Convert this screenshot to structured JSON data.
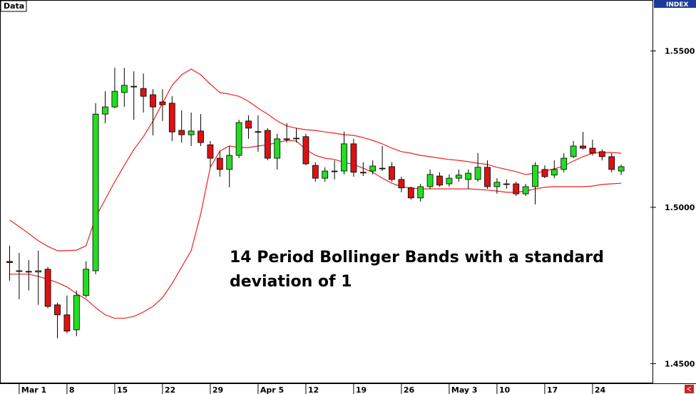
{
  "chart_data": {
    "type": "candlestick",
    "label": "Data",
    "index_label": "INDEX",
    "annotation": "14 Period Bollinger Bands with a standard deviation of 1",
    "categories": [
      null,
      "Mar 1",
      null,
      null,
      null,
      null,
      "8",
      null,
      null,
      null,
      null,
      "15",
      null,
      null,
      null,
      null,
      "22",
      null,
      null,
      null,
      null,
      "29",
      null,
      null,
      null,
      null,
      "Apr 5",
      null,
      null,
      null,
      null,
      "12",
      null,
      null,
      null,
      null,
      "19",
      null,
      null,
      null,
      null,
      "26",
      null,
      null,
      null,
      null,
      "May 3",
      null,
      null,
      null,
      null,
      "10",
      null,
      null,
      null,
      null,
      "17",
      null,
      null,
      null,
      null,
      "24",
      null,
      null,
      null
    ],
    "open": [
      1.4827,
      1.4797,
      1.4795,
      1.4793,
      1.4802,
      1.4688,
      1.4656,
      1.4608,
      1.4718,
      1.4797,
      1.5298,
      1.5321,
      1.5367,
      1.5387,
      1.538,
      1.536,
      1.5337,
      1.5333,
      1.5246,
      1.5232,
      1.5244,
      1.52,
      1.5157,
      1.5121,
      1.5166,
      1.5276,
      1.5242,
      1.5246,
      1.5157,
      1.5219,
      1.5219,
      1.5226,
      1.5134,
      1.5093,
      1.5116,
      1.5116,
      1.5203,
      1.5112,
      1.5116,
      1.5125,
      1.513,
      1.5089,
      1.5062,
      1.503,
      1.5066,
      1.51,
      1.5075,
      1.5093,
      1.5089,
      1.5089,
      1.5128,
      1.5066,
      1.5075,
      1.5075,
      1.5043,
      1.5066,
      1.5121,
      1.5103,
      1.5121,
      1.5162,
      1.5196,
      1.5189,
      1.5178,
      1.5162,
      1.5116
    ],
    "high": [
      1.4877,
      1.4854,
      1.4831,
      1.4861,
      1.4809,
      1.4695,
      1.4718,
      1.4734,
      1.4827,
      1.5333,
      1.5371,
      1.5446,
      1.5446,
      1.5435,
      1.5428,
      1.5378,
      1.5378,
      1.5355,
      1.531,
      1.5303,
      1.5298,
      1.5212,
      1.518,
      1.5196,
      1.528,
      1.5294,
      1.5294,
      1.5253,
      1.5235,
      1.5269,
      1.5253,
      1.5235,
      1.5144,
      1.5128,
      1.515,
      1.5242,
      1.5219,
      1.5144,
      1.515,
      1.5196,
      1.5144,
      1.5098,
      1.5066,
      1.5075,
      1.5121,
      1.5112,
      1.5105,
      1.5121,
      1.5121,
      1.5173,
      1.515,
      1.5093,
      1.5089,
      1.5082,
      1.5075,
      1.5144,
      1.5134,
      1.515,
      1.5173,
      1.5212,
      1.5241,
      1.5216,
      1.5185,
      1.5173,
      1.5137
    ],
    "low": [
      1.4765,
      1.4706,
      1.4734,
      1.4688,
      1.4677,
      1.4581,
      1.4597,
      1.4588,
      1.4711,
      1.4786,
      1.5269,
      1.5317,
      1.5321,
      1.528,
      1.5303,
      1.523,
      1.5276,
      1.5212,
      1.5207,
      1.5196,
      1.5196,
      1.5128,
      1.5098,
      1.5064,
      1.5157,
      1.5219,
      1.5178,
      1.515,
      1.5121,
      1.5207,
      1.5207,
      1.5134,
      1.5082,
      1.5082,
      1.5089,
      1.5105,
      1.5098,
      1.51,
      1.5105,
      1.5116,
      1.5082,
      1.5048,
      1.5025,
      1.5018,
      1.5059,
      1.5066,
      1.5066,
      1.5082,
      1.5059,
      1.5082,
      1.5059,
      1.5043,
      1.5059,
      1.5036,
      1.5036,
      1.5009,
      1.5093,
      1.5093,
      1.5112,
      1.5157,
      1.5185,
      1.5166,
      1.515,
      1.5112,
      1.5103
    ],
    "close": [
      1.4823,
      1.4795,
      1.4793,
      1.4797,
      1.4683,
      1.4656,
      1.4604,
      1.4718,
      1.4802,
      1.5298,
      1.5321,
      1.5371,
      1.539,
      1.5385,
      1.5355,
      1.5321,
      1.5328,
      1.5241,
      1.5232,
      1.5244,
      1.5207,
      1.5157,
      1.5121,
      1.5166,
      1.5271,
      1.5253,
      1.524,
      1.5157,
      1.5219,
      1.5217,
      1.5221,
      1.5139,
      1.5093,
      1.5116,
      1.5114,
      1.5203,
      1.5112,
      1.511,
      1.5132,
      1.5123,
      1.5089,
      1.5062,
      1.503,
      1.5066,
      1.5105,
      1.5071,
      1.5093,
      1.5103,
      1.5109,
      1.5128,
      1.5066,
      1.508,
      1.5073,
      1.5043,
      1.5066,
      1.5134,
      1.5098,
      1.5121,
      1.5157,
      1.5196,
      1.5189,
      1.5173,
      1.5162,
      1.5121,
      1.513
    ],
    "up_color": "#22dd22",
    "down_color": "#dd1111",
    "bands": [
      {
        "color": "#ee2222",
        "values": [
          1.4959,
          1.4938,
          1.4916,
          1.4893,
          1.4875,
          1.4861,
          1.4861,
          1.4863,
          1.4877,
          1.4968,
          1.5025,
          1.5082,
          1.5134,
          1.5185,
          1.5226,
          1.5276,
          1.5333,
          1.539,
          1.5424,
          1.5442,
          1.5424,
          1.5394,
          1.5367,
          1.5362,
          1.5355,
          1.5339,
          1.5317,
          1.5298,
          1.5276,
          1.526,
          1.5253,
          1.5248,
          1.5246,
          1.5241,
          1.5237,
          1.5232,
          1.523,
          1.5223,
          1.5214,
          1.5203,
          1.5189,
          1.5178,
          1.5173,
          1.5166,
          1.5162,
          1.5157,
          1.5153,
          1.515,
          1.5146,
          1.5141,
          1.5137,
          1.5128,
          1.5121,
          1.5114,
          1.5105,
          1.5109,
          1.5116,
          1.5123,
          1.5132,
          1.5148,
          1.5162,
          1.5173,
          1.5175,
          1.5175,
          1.5173
        ]
      },
      {
        "color": "#ee2222",
        "values": [
          1.4786,
          1.4786,
          1.4786,
          1.4779,
          1.477,
          1.4759,
          1.4745,
          1.4724,
          1.4706,
          1.4679,
          1.4656,
          1.4645,
          1.4645,
          1.4651,
          1.4665,
          1.4683,
          1.4711,
          1.4756,
          1.4809,
          1.4861,
          1.4979,
          1.5128,
          1.518,
          1.5196,
          1.5191,
          1.5191,
          1.5196,
          1.52,
          1.5207,
          1.5214,
          1.5212,
          1.5185,
          1.5166,
          1.5157,
          1.5153,
          1.5144,
          1.5137,
          1.5125,
          1.5112,
          1.5093,
          1.5077,
          1.5066,
          1.5062,
          1.5059,
          1.5059,
          1.5059,
          1.5059,
          1.5059,
          1.5059,
          1.5057,
          1.5055,
          1.5052,
          1.5048,
          1.5048,
          1.5052,
          1.5059,
          1.5064,
          1.5066,
          1.5066,
          1.5066,
          1.5066,
          1.5068,
          1.5073,
          1.5075,
          1.5077
        ]
      }
    ],
    "ylim": [
      1.4437,
      1.5663
    ],
    "yticks": [
      {
        "value": 1.45,
        "label": "1.4500"
      },
      {
        "value": 1.5,
        "label": "1.5000"
      },
      {
        "value": 1.55,
        "label": "1.5500"
      }
    ],
    "grid": false
  }
}
